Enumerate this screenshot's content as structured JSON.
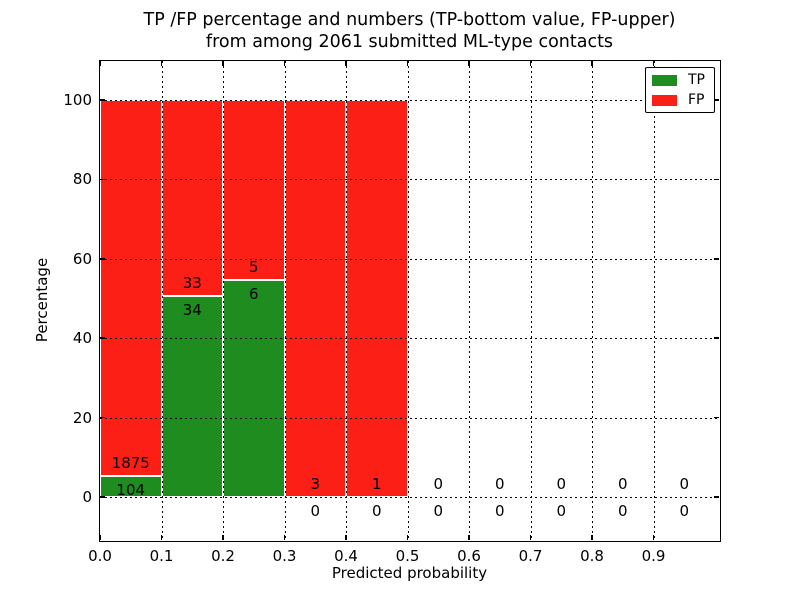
{
  "figure": {
    "title_line1": "TP /FP percentage and numbers (TP-bottom value, FP-upper)",
    "title_line2": "from among 2061 submitted ML-type contacts"
  },
  "chart_data": {
    "type": "bar",
    "stacked": true,
    "title": "TP /FP percentage and numbers (TP-bottom value, FP-upper)\nfrom among 2061 submitted ML-type contacts",
    "xlabel": "Predicted probability",
    "ylabel": "Percentage",
    "total_contacts": 2061,
    "bin_width": 0.1,
    "x_bins": [
      0.0,
      0.1,
      0.2,
      0.3,
      0.4,
      0.5,
      0.6,
      0.7,
      0.8,
      0.9
    ],
    "x_tick_labels": [
      "0.0",
      "0.1",
      "0.2",
      "0.3",
      "0.4",
      "0.5",
      "0.6",
      "0.7",
      "0.8",
      "0.9"
    ],
    "y_ticks": [
      0,
      20,
      40,
      60,
      80,
      100
    ],
    "xlim": [
      0.0,
      1.007
    ],
    "ylim": [
      -10.8,
      109.8
    ],
    "grid": true,
    "grid_linestyle": "dotted",
    "bar_mode": "percent_stacked_to_100",
    "series": [
      {
        "name": "TP",
        "color": "#1e8c1e",
        "counts": [
          104,
          34,
          6,
          0,
          0,
          0,
          0,
          0,
          0,
          0
        ]
      },
      {
        "name": "FP",
        "color": "#fb1f15",
        "counts": [
          1875,
          33,
          5,
          3,
          1,
          0,
          0,
          0,
          0,
          0
        ]
      }
    ],
    "tp_percent_by_bin": [
      5.26,
      50.75,
      54.55,
      0.0,
      0.0,
      null,
      null,
      null,
      null,
      null
    ],
    "legend": {
      "position": "upper right",
      "entries": [
        {
          "label": "TP",
          "color": "#1e8c1e"
        },
        {
          "label": "FP",
          "color": "#fb1f15"
        }
      ]
    }
  }
}
